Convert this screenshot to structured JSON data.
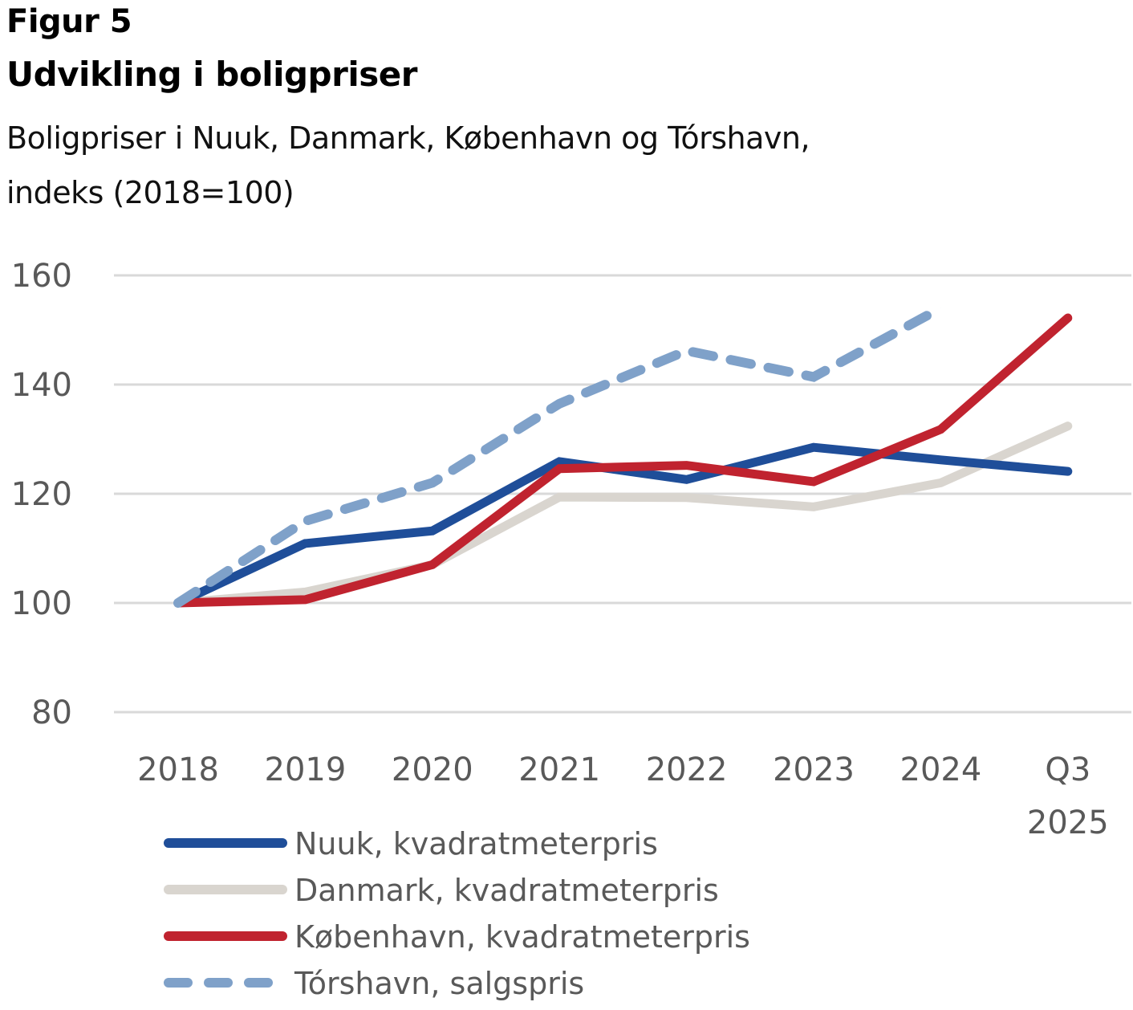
{
  "header": {
    "figure_label": "Figur 5",
    "title": "Udvikling i boligpriser",
    "subtitle_line1": "Boligpriser i Nuuk, Danmark, København og Tórshavn,",
    "subtitle_line2": "indeks (2018=100)"
  },
  "chart_data": {
    "type": "line",
    "title": "Udvikling i boligpriser",
    "subtitle": "Boligpriser i Nuuk, Danmark, København og Tórshavn, indeks (2018=100)",
    "xlabel": "",
    "ylabel": "",
    "categories": [
      "2018",
      "2019",
      "2020",
      "2021",
      "2022",
      "2023",
      "2024",
      "Q3 2025"
    ],
    "category_lines": [
      [
        "2018"
      ],
      [
        "2019"
      ],
      [
        "2020"
      ],
      [
        "2021"
      ],
      [
        "2022"
      ],
      [
        "2023"
      ],
      [
        "2024"
      ],
      [
        "Q3",
        "2025"
      ]
    ],
    "ylim": [
      80,
      160
    ],
    "yticks": [
      80,
      100,
      120,
      140,
      160
    ],
    "grid": true,
    "legend_position": "bottom-left",
    "series": [
      {
        "name": "Nuuk, kvadratmeterpris",
        "color": "#1f4e99",
        "dashed": false,
        "values": [
          100,
          110.9,
          113.2,
          125.9,
          122.6,
          128.5,
          126.2,
          124.1
        ]
      },
      {
        "name": "Danmark, kvadratmeterpris",
        "color": "#d9d5cf",
        "dashed": false,
        "values": [
          100,
          102.0,
          107.0,
          119.4,
          119.3,
          117.6,
          122.0,
          132.4
        ]
      },
      {
        "name": "København, kvadratmeterpris",
        "color": "#c0232f",
        "dashed": false,
        "values": [
          100,
          100.6,
          107.0,
          124.6,
          125.2,
          122.2,
          131.8,
          152.2
        ]
      },
      {
        "name": "Tórshavn, salgspris",
        "color": "#7fa1c9",
        "dashed": true,
        "values": [
          100,
          115.0,
          122.0,
          136.5,
          146.2,
          141.4,
          154.0,
          null
        ]
      }
    ]
  }
}
